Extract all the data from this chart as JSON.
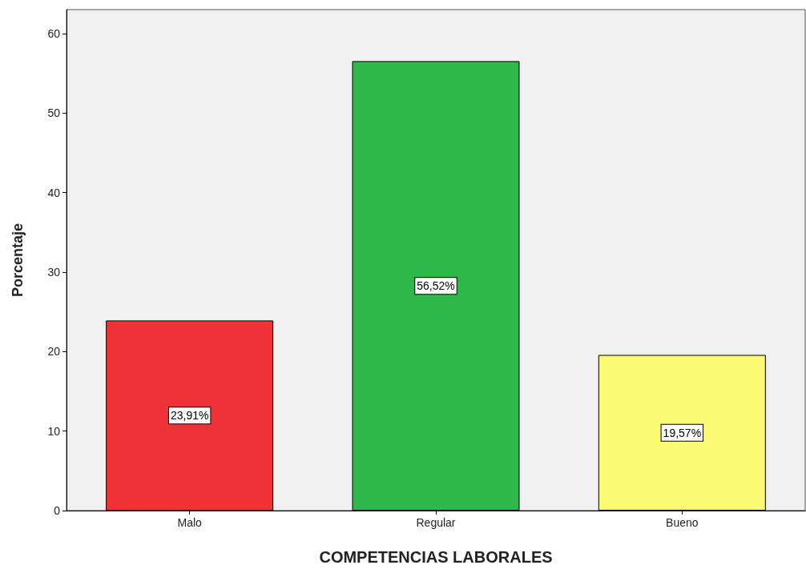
{
  "chart_data": {
    "type": "bar",
    "xlabel": "COMPETENCIAS LABORALES",
    "ylabel": "Porcentaje",
    "categories": [
      "Malo",
      "Regular",
      "Bueno"
    ],
    "values": [
      23.91,
      56.52,
      19.57
    ],
    "colors": [
      "#f03237",
      "#2eb84a",
      "#fafa73"
    ],
    "value_labels": [
      "23,91%",
      "56,52%",
      "19,57%"
    ],
    "ylim": [
      0,
      63
    ],
    "yticks": [
      0,
      10,
      20,
      30,
      40,
      50,
      60
    ],
    "grid": false
  }
}
